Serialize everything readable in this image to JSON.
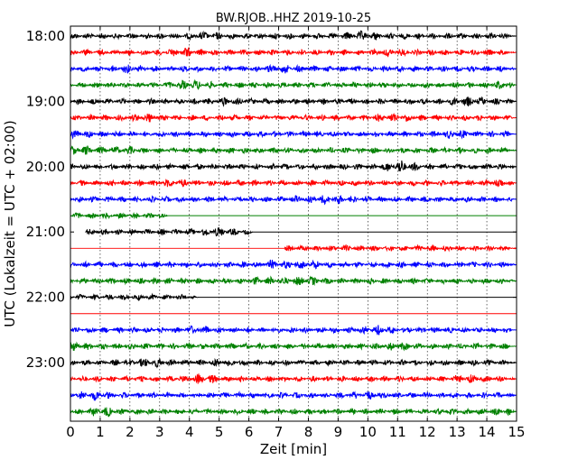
{
  "chart_data": {
    "type": "line",
    "title": "BW.RJOB..HHZ 2019-10-25",
    "xlabel": "Zeit  [min]",
    "ylabel": "UTC (Lokalzeit = UTC + 02:00)",
    "xlim": [
      0,
      15
    ],
    "x_ticks": [
      "0",
      "1",
      "2",
      "3",
      "4",
      "5",
      "6",
      "7",
      "8",
      "9",
      "10",
      "11",
      "12",
      "13",
      "14",
      "15"
    ],
    "y_tick_labels": [
      "18:00",
      "19:00",
      "20:00",
      "21:00",
      "22:00",
      "23:00"
    ],
    "grid": "vertical dotted",
    "trace_colors": [
      "#000000",
      "#ff0000",
      "#0000ff",
      "#008000"
    ],
    "traces": [
      {
        "start": "18:00",
        "data_from": 0,
        "data_to": 15
      },
      {
        "start": "18:15",
        "data_from": 0,
        "data_to": 15
      },
      {
        "start": "18:30",
        "data_from": 0,
        "data_to": 15
      },
      {
        "start": "18:45",
        "data_from": 0,
        "data_to": 15
      },
      {
        "start": "19:00",
        "data_from": 0,
        "data_to": 15
      },
      {
        "start": "19:15",
        "data_from": 0,
        "data_to": 15
      },
      {
        "start": "19:30",
        "data_from": 0,
        "data_to": 15
      },
      {
        "start": "19:45",
        "data_from": 0,
        "data_to": 15
      },
      {
        "start": "20:00",
        "data_from": 0,
        "data_to": 15
      },
      {
        "start": "20:15",
        "data_from": 0,
        "data_to": 15
      },
      {
        "start": "20:30",
        "data_from": 0,
        "data_to": 15
      },
      {
        "start": "20:45",
        "data_from": 0,
        "data_to": 3.3
      },
      {
        "start": "21:00",
        "data_from": 0.5,
        "data_to": 6.2
      },
      {
        "start": "21:15",
        "data_from": 7.2,
        "data_to": 15
      },
      {
        "start": "21:30",
        "data_from": 0,
        "data_to": 15
      },
      {
        "start": "21:45",
        "data_from": 0,
        "data_to": 15
      },
      {
        "start": "22:00",
        "data_from": 0,
        "data_to": 4.3
      },
      {
        "start": "22:15",
        "data_from": null,
        "data_to": null
      },
      {
        "start": "22:30",
        "data_from": 0,
        "data_to": 15
      },
      {
        "start": "22:45",
        "data_from": 0,
        "data_to": 15
      },
      {
        "start": "23:00",
        "data_from": 0,
        "data_to": 15
      },
      {
        "start": "23:15",
        "data_from": 0,
        "data_to": 15
      },
      {
        "start": "23:30",
        "data_from": 0,
        "data_to": 15
      },
      {
        "start": "23:45",
        "data_from": 0,
        "data_to": 15
      }
    ]
  }
}
